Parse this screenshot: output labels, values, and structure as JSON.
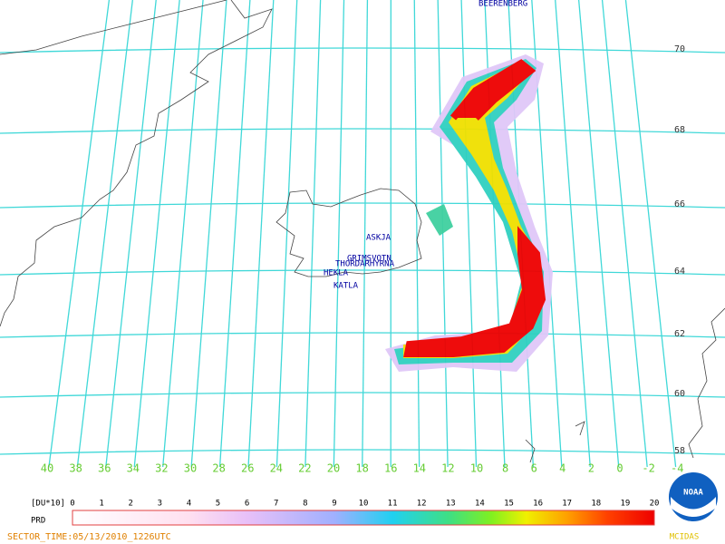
{
  "volcanoes": [
    "BEERENBERG",
    "ASKJA",
    "GRIMSVOTN",
    "THORDARHYRNA",
    "HEKLA",
    "KATLA"
  ],
  "latitude_labels": [
    70,
    68,
    66,
    64,
    62,
    60,
    58
  ],
  "longitude_labels": [
    40,
    38,
    36,
    34,
    32,
    30,
    28,
    26,
    24,
    22,
    20,
    18,
    16,
    14,
    12,
    10,
    8,
    6,
    4,
    2,
    0,
    -2,
    -4
  ],
  "colorbar": {
    "unit": "[DU*10]",
    "product": "PRD",
    "labels": [
      0,
      1,
      2,
      3,
      4,
      5,
      6,
      7,
      8,
      9,
      10,
      11,
      12,
      13,
      14,
      15,
      16,
      17,
      18,
      19,
      20
    ]
  },
  "sector_time": "SECTOR_TIME:05/13/2010_1226UTC",
  "logos": {
    "noaa": "NOAA",
    "mcidas": "MCIDAS"
  }
}
